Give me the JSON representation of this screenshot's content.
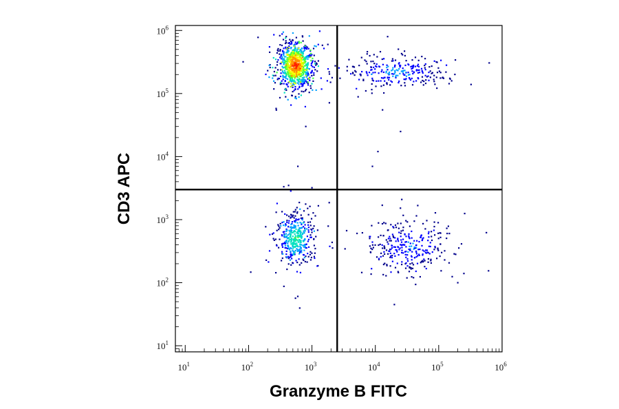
{
  "chart_data": {
    "type": "scatter",
    "subtype": "flow-cytometry-density-dot-plot",
    "title": "",
    "xlabel": "Granzyme B FITC",
    "ylabel": "CD3 APC",
    "xscale": "log",
    "yscale": "log",
    "xlim": [
      7,
      1000000
    ],
    "ylim": [
      8,
      1200000
    ],
    "x_ticks": [
      {
        "value": 10,
        "base": "10",
        "exp": "1"
      },
      {
        "value": 100,
        "base": "10",
        "exp": "2"
      },
      {
        "value": 1000,
        "base": "10",
        "exp": "3"
      },
      {
        "value": 10000,
        "base": "10",
        "exp": "4"
      },
      {
        "value": 100000,
        "base": "10",
        "exp": "5"
      },
      {
        "value": 1000000,
        "base": "10",
        "exp": "6"
      }
    ],
    "y_ticks": [
      {
        "value": 10,
        "base": "10",
        "exp": "1"
      },
      {
        "value": 100,
        "base": "10",
        "exp": "2"
      },
      {
        "value": 1000,
        "base": "10",
        "exp": "3"
      },
      {
        "value": 10000,
        "base": "10",
        "exp": "4"
      },
      {
        "value": 100000,
        "base": "10",
        "exp": "5"
      },
      {
        "value": 1000000,
        "base": "10",
        "exp": "6"
      }
    ],
    "grid": false,
    "legend": "none",
    "quadrant_gates": {
      "x": 2500,
      "y": 3000
    },
    "density_colors": [
      "#00008b",
      "#0000ff",
      "#00a0ff",
      "#00e0c0",
      "#40ff40",
      "#c0ff00",
      "#ffff00",
      "#ff9000",
      "#ff2000"
    ],
    "populations": [
      {
        "quadrant": "upper-left",
        "x_center": 550,
        "y_center": 280000,
        "x_spread_decades": 0.13,
        "y_spread_decades": 0.18,
        "relative_count": 900,
        "peak_density": 1.0
      },
      {
        "quadrant": "upper-right",
        "x_center": 22000,
        "y_center": 220000,
        "x_spread_decades": 0.38,
        "y_spread_decades": 0.12,
        "relative_count": 260,
        "peak_density": 0.25
      },
      {
        "quadrant": "lower-left",
        "x_center": 550,
        "y_center": 500,
        "x_spread_decades": 0.14,
        "y_spread_decades": 0.2,
        "relative_count": 420,
        "peak_density": 0.45
      },
      {
        "quadrant": "lower-right",
        "x_center": 35000,
        "y_center": 380,
        "x_spread_decades": 0.3,
        "y_spread_decades": 0.2,
        "relative_count": 300,
        "peak_density": 0.2
      }
    ],
    "outliers": [
      {
        "x": 800,
        "y": 30000
      },
      {
        "x": 600,
        "y": 7000
      },
      {
        "x": 1000,
        "y": 3200
      },
      {
        "x": 9000,
        "y": 7000
      },
      {
        "x": 11000,
        "y": 12000
      },
      {
        "x": 13000,
        "y": 55000
      },
      {
        "x": 25000,
        "y": 25000
      },
      {
        "x": 40000,
        "y": 120
      },
      {
        "x": 60000,
        "y": 180
      },
      {
        "x": 250000,
        "y": 140
      },
      {
        "x": 200000,
        "y": 100
      },
      {
        "x": 20000,
        "y": 45
      }
    ]
  }
}
